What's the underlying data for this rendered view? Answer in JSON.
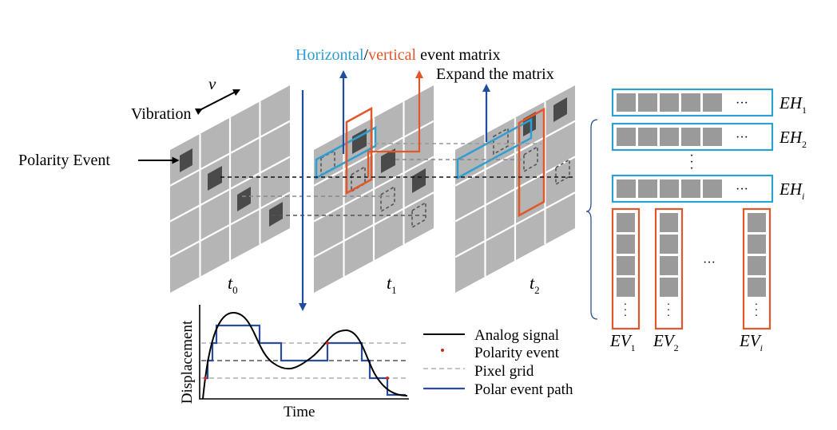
{
  "labels": {
    "title_horizontal": "Horizontal",
    "title_slash": "/",
    "title_vertical": "vertical",
    "title_rest": " event matrix",
    "expand": "Expand the matrix",
    "v": "v",
    "vibration": "Vibration",
    "polarity_event": "Polarity Event",
    "t0_main": "t",
    "t0_sub": "0",
    "t1_main": "t",
    "t1_sub": "1",
    "t2_main": "t",
    "t2_sub": "2",
    "displacement": "Displacement",
    "time": "Time",
    "ellipsis": "···"
  },
  "legend": [
    "Analog signal",
    "Polarity event",
    "Pixel grid",
    "Polar event path"
  ],
  "eh_labels": [
    {
      "main": "EH",
      "sub": "1"
    },
    {
      "main": "EH",
      "sub": "2"
    },
    {
      "main": "EH",
      "sub": "i"
    }
  ],
  "ev_labels": [
    {
      "main": "EV",
      "sub": "1"
    },
    {
      "main": "EV",
      "sub": "2"
    },
    {
      "main": "EV",
      "sub": "i"
    }
  ],
  "colors": {
    "horizontal": "#2e9fd2",
    "vertical": "#e2572a",
    "arrow_blue": "#1f4e9e",
    "path_blue": "#2b4c9a",
    "grid_gray": "#b5b5b5",
    "cell_gray": "#9a9a9a",
    "event_dark": "#4a4a4a",
    "polarity_red": "#cc2a1e"
  }
}
